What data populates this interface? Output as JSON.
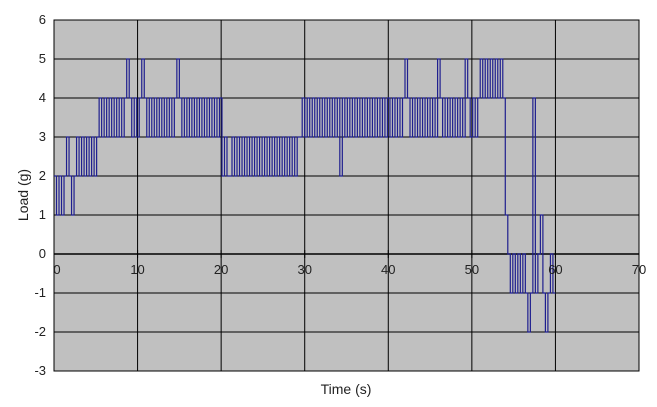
{
  "chart_data": {
    "type": "line",
    "title": "",
    "xlabel": "Time (s)",
    "ylabel": "Load (g)",
    "xlim": [
      0,
      70
    ],
    "ylim": [
      -3,
      6
    ],
    "x_ticks": [
      0,
      10,
      20,
      30,
      40,
      50,
      60,
      70
    ],
    "y_ticks": [
      -3,
      -2,
      -1,
      0,
      1,
      2,
      3,
      4,
      5,
      6
    ],
    "grid": true,
    "legend": "none",
    "colors": {
      "plot_background": "#c0c0c0",
      "grid": "#000000",
      "series": "#1f1f8f"
    },
    "series": [
      {
        "x": [
          0.0,
          0.3,
          0.6,
          0.9,
          1.2,
          1.5,
          1.8,
          2.1,
          2.4,
          2.7,
          3.0,
          3.3,
          3.6,
          3.9,
          4.2,
          4.5,
          4.8,
          5.1,
          5.4,
          5.7,
          6.0,
          6.3,
          6.6,
          6.9,
          7.2,
          7.5,
          7.8,
          8.1,
          8.4,
          8.7,
          9.0,
          9.3,
          9.6,
          9.9,
          10.2,
          10.5,
          10.8,
          11.1,
          11.4,
          11.7,
          12.0,
          12.3,
          12.6,
          12.9,
          13.2,
          13.5,
          13.8,
          14.1,
          14.4,
          14.7,
          15.0,
          15.3,
          15.6,
          15.9,
          16.2,
          16.5,
          16.8,
          17.1,
          17.4,
          17.7,
          18.0,
          18.3,
          18.6,
          18.9,
          19.2,
          19.5,
          19.8,
          20.1,
          20.4,
          20.7,
          21.0,
          21.3,
          21.6,
          21.9,
          22.2,
          22.5,
          22.8,
          23.1,
          23.4,
          23.7,
          24.0,
          24.3,
          24.6,
          24.9,
          25.2,
          25.5,
          25.8,
          26.1,
          26.4,
          26.7,
          27.0,
          27.3,
          27.6,
          27.9,
          28.2,
          28.5,
          28.8,
          29.1,
          29.4,
          29.7,
          30.0,
          30.3,
          30.6,
          30.9,
          31.2,
          31.5,
          31.8,
          32.1,
          32.4,
          32.7,
          33.0,
          33.3,
          33.6,
          33.9,
          34.2,
          34.5,
          34.8,
          35.1,
          35.4,
          35.7,
          36.0,
          36.3,
          36.6,
          36.9,
          37.2,
          37.5,
          37.8,
          38.1,
          38.4,
          38.7,
          39.0,
          39.3,
          39.6,
          39.9,
          40.2,
          40.5,
          40.8,
          41.1,
          41.4,
          41.7,
          42.0,
          42.3,
          42.6,
          42.9,
          43.2,
          43.5,
          43.8,
          44.1,
          44.4,
          44.7,
          45.0,
          45.3,
          45.6,
          45.9,
          46.2,
          46.5,
          46.8,
          47.1,
          47.4,
          47.7,
          48.0,
          48.3,
          48.6,
          48.9,
          49.2,
          49.5,
          49.8,
          50.1,
          50.4,
          50.7,
          51.0,
          51.3,
          51.6,
          51.9,
          52.2,
          52.5,
          52.8,
          53.1,
          53.4,
          53.7,
          54.0,
          54.3,
          54.6,
          54.9,
          55.2,
          55.5,
          55.8,
          56.1,
          56.4,
          56.7,
          57.0,
          57.3,
          57.6,
          57.9,
          58.2,
          58.5,
          58.8,
          59.1,
          59.4,
          59.7,
          60.0
        ],
        "y": [
          2,
          1,
          2,
          1,
          2,
          3,
          2,
          1,
          2,
          3,
          2,
          3,
          2,
          3,
          2,
          3,
          2,
          3,
          4,
          3,
          4,
          3,
          4,
          3,
          4,
          3,
          4,
          3,
          4,
          5,
          4,
          3,
          4,
          3,
          4,
          5,
          4,
          3,
          4,
          3,
          4,
          3,
          4,
          3,
          4,
          3,
          4,
          3,
          4,
          5,
          4,
          3,
          4,
          3,
          4,
          3,
          4,
          3,
          4,
          3,
          4,
          3,
          4,
          3,
          4,
          3,
          4,
          2,
          3,
          2,
          2,
          3,
          2,
          3,
          2,
          3,
          2,
          3,
          2,
          3,
          2,
          3,
          2,
          3,
          2,
          3,
          2,
          3,
          2,
          3,
          2,
          3,
          2,
          3,
          2,
          3,
          2,
          3,
          3,
          4,
          3,
          4,
          3,
          4,
          3,
          4,
          3,
          4,
          3,
          4,
          3,
          4,
          3,
          4,
          2,
          4,
          3,
          4,
          3,
          4,
          3,
          4,
          3,
          4,
          3,
          4,
          3,
          4,
          3,
          4,
          3,
          4,
          3,
          4,
          3,
          4,
          3,
          4,
          3,
          4,
          5,
          4,
          3,
          4,
          3,
          4,
          3,
          4,
          3,
          4,
          3,
          4,
          3,
          5,
          4,
          3,
          4,
          3,
          4,
          3,
          4,
          3,
          4,
          3,
          5,
          4,
          3,
          4,
          3,
          4,
          5,
          4,
          5,
          4,
          5,
          4,
          5,
          4,
          5,
          4,
          1,
          0,
          -1,
          0,
          -1,
          0,
          -1,
          0,
          -1,
          -2,
          -1,
          4,
          -1,
          0,
          1,
          -1,
          -2,
          -1,
          0,
          -1,
          -1
        ]
      }
    ]
  }
}
